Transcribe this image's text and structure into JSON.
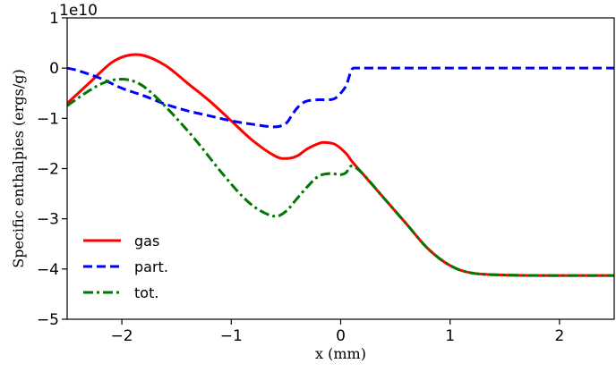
{
  "chart_data": {
    "type": "line",
    "title": "",
    "xlabel": "x (mm)",
    "ylabel": "Specific enthalpies (ergs/g)",
    "y_offset_label": "1e10",
    "xlim": [
      -2.5,
      2.5
    ],
    "ylim": [
      -5,
      1
    ],
    "x_ticks": [
      -2,
      -1,
      0,
      1,
      2
    ],
    "x_tick_labels": [
      "−2",
      "−1",
      "0",
      "1",
      "2"
    ],
    "y_ticks": [
      -5,
      -4,
      -3,
      -2,
      -1,
      0,
      1
    ],
    "y_tick_labels": [
      "−5",
      "−4",
      "−3",
      "−2",
      "−1",
      "0",
      "1"
    ],
    "grid": false,
    "legend_position": "lower-left",
    "series": [
      {
        "name": "gas",
        "color": "#ff0000",
        "style": "solid",
        "x": [
          -2.5,
          -2.3,
          -2.1,
          -1.95,
          -1.8,
          -1.6,
          -1.4,
          -1.2,
          -1.0,
          -0.8,
          -0.6,
          -0.5,
          -0.4,
          -0.3,
          -0.2,
          -0.15,
          -0.05,
          0.05,
          0.1,
          0.2,
          0.4,
          0.6,
          0.8,
          1.0,
          1.2,
          1.5,
          2.0,
          2.5
        ],
        "values": [
          -0.7,
          -0.3,
          0.1,
          0.25,
          0.25,
          0.05,
          -0.3,
          -0.65,
          -1.05,
          -1.45,
          -1.75,
          -1.8,
          -1.75,
          -1.6,
          -1.5,
          -1.48,
          -1.52,
          -1.7,
          -1.85,
          -2.1,
          -2.6,
          -3.1,
          -3.6,
          -3.93,
          -4.08,
          -4.12,
          -4.13,
          -4.13
        ]
      },
      {
        "name": "part.",
        "color": "#0000ff",
        "style": "dashed",
        "x": [
          -2.5,
          -2.4,
          -2.2,
          -2.0,
          -1.8,
          -1.6,
          -1.4,
          -1.2,
          -1.0,
          -0.8,
          -0.6,
          -0.5,
          -0.45,
          -0.4,
          -0.35,
          -0.3,
          -0.2,
          -0.1,
          -0.05,
          0.0,
          0.05,
          0.08,
          0.1,
          0.12,
          0.15,
          0.3,
          0.6,
          1.0,
          1.5,
          2.0,
          2.5
        ],
        "values": [
          0.0,
          -0.05,
          -0.2,
          -0.4,
          -0.55,
          -0.72,
          -0.85,
          -0.95,
          -1.05,
          -1.12,
          -1.17,
          -1.1,
          -0.95,
          -0.8,
          -0.7,
          -0.65,
          -0.63,
          -0.63,
          -0.6,
          -0.5,
          -0.35,
          -0.15,
          -0.03,
          0.0,
          0.0,
          0.0,
          0.0,
          0.0,
          0.0,
          0.0,
          0.0
        ]
      },
      {
        "name": "tot.",
        "color": "#007700",
        "style": "dashdot",
        "x": [
          -2.5,
          -2.3,
          -2.15,
          -2.0,
          -1.85,
          -1.7,
          -1.5,
          -1.3,
          -1.1,
          -0.9,
          -0.75,
          -0.6,
          -0.5,
          -0.4,
          -0.3,
          -0.2,
          -0.1,
          0.0,
          0.05,
          0.1,
          0.2,
          0.4,
          0.6,
          0.8,
          1.0,
          1.2,
          1.5,
          2.0,
          2.5
        ],
        "values": [
          -0.75,
          -0.45,
          -0.28,
          -0.22,
          -0.3,
          -0.55,
          -1.0,
          -1.5,
          -2.05,
          -2.55,
          -2.82,
          -2.95,
          -2.85,
          -2.6,
          -2.35,
          -2.15,
          -2.1,
          -2.12,
          -2.08,
          -1.95,
          -2.1,
          -2.6,
          -3.1,
          -3.6,
          -3.93,
          -4.08,
          -4.12,
          -4.13,
          -4.13
        ]
      }
    ]
  }
}
